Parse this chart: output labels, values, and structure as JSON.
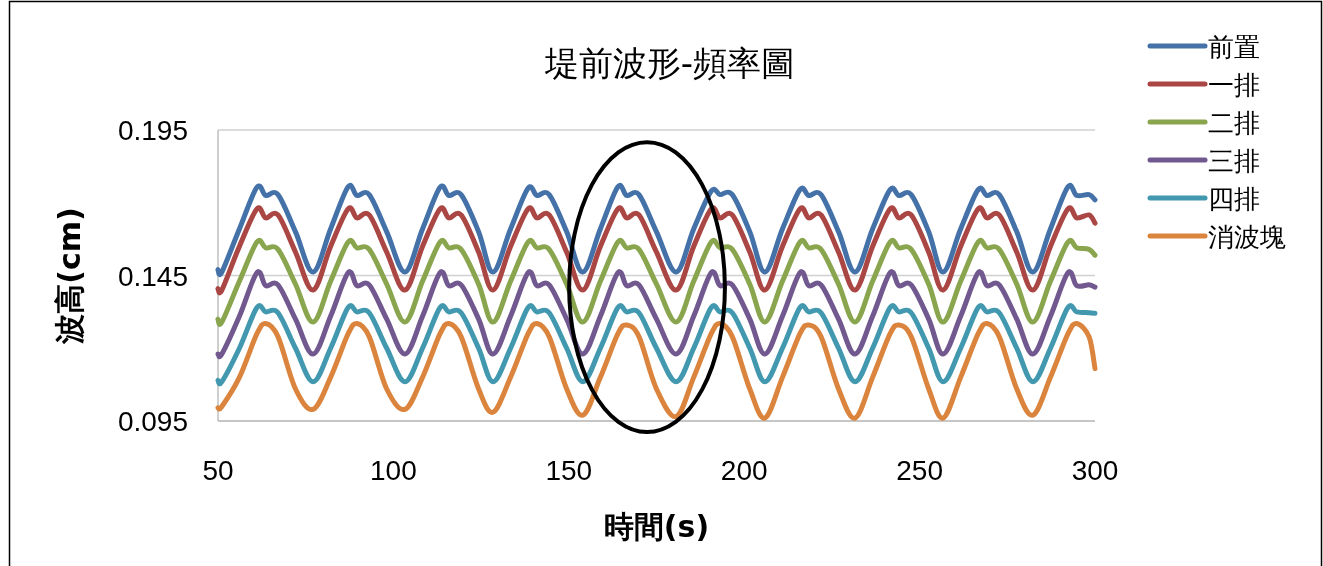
{
  "chart_data": {
    "type": "line",
    "title": "堤前波形-頻率圖",
    "xlabel": "時間(s)",
    "ylabel": "波高(cm)",
    "xlim": [
      50,
      300
    ],
    "xticks": [
      50,
      100,
      150,
      200,
      250,
      300
    ],
    "ylim": [
      0.095,
      0.195
    ],
    "yticks": [
      0.095,
      0.145,
      0.195
    ],
    "grid": "y",
    "legend": "top right",
    "marker": "none",
    "line_style": "solid",
    "x": [
      50,
      51.1,
      56.1,
      61.1,
      63.6,
      67.1,
      72.1,
      77.1,
      82.1,
      87.1,
      89.6,
      93.1,
      98.1,
      103.3,
      108.3,
      113.3,
      115.8,
      119.3,
      124.3,
      128.4,
      133.4,
      138.4,
      140.9,
      144.4,
      149.4,
      154,
      159,
      164,
      166.5,
      170,
      175,
      180.6,
      185.6,
      190.6,
      193.1,
      196.6,
      201.6,
      205.9,
      210.9,
      215.9,
      218.4,
      221.9,
      226.9,
      231.6,
      236.6,
      241.6,
      244.1,
      247.6,
      252.6,
      256.7,
      261.7,
      266.7,
      269.2,
      272.7,
      277.7,
      282.3,
      287.3,
      292.3,
      294.8,
      298.3,
      300
    ],
    "series": [
      {
        "name": "前置",
        "color": "#4472a8",
        "values": [
          0.147,
          0.1462,
          0.161,
          0.1753,
          0.1725,
          0.1728,
          0.16,
          0.1462,
          0.161,
          0.1755,
          0.1725,
          0.1728,
          0.16,
          0.1462,
          0.161,
          0.1753,
          0.1725,
          0.1728,
          0.16,
          0.1462,
          0.161,
          0.175,
          0.1725,
          0.1728,
          0.16,
          0.1462,
          0.161,
          0.1755,
          0.1725,
          0.1728,
          0.16,
          0.1462,
          0.161,
          0.174,
          0.1728,
          0.1728,
          0.16,
          0.1462,
          0.161,
          0.1745,
          0.1725,
          0.1728,
          0.16,
          0.1462,
          0.161,
          0.1745,
          0.1725,
          0.1728,
          0.16,
          0.1462,
          0.161,
          0.1745,
          0.1725,
          0.1728,
          0.16,
          0.1462,
          0.161,
          0.1755,
          0.1725,
          0.1728,
          0.171
        ]
      },
      {
        "name": "一排",
        "color": "#aa4643",
        "values": [
          0.1405,
          0.14,
          0.155,
          0.1679,
          0.1648,
          0.1658,
          0.153,
          0.14,
          0.155,
          0.1679,
          0.1648,
          0.1658,
          0.153,
          0.14,
          0.155,
          0.1679,
          0.1648,
          0.1658,
          0.153,
          0.14,
          0.155,
          0.1679,
          0.1648,
          0.1658,
          0.153,
          0.14,
          0.155,
          0.1679,
          0.1648,
          0.1658,
          0.153,
          0.14,
          0.155,
          0.1679,
          0.1648,
          0.1658,
          0.153,
          0.14,
          0.155,
          0.1679,
          0.1648,
          0.1658,
          0.153,
          0.14,
          0.155,
          0.1679,
          0.1648,
          0.1658,
          0.153,
          0.14,
          0.155,
          0.1679,
          0.1648,
          0.1658,
          0.153,
          0.14,
          0.155,
          0.1679,
          0.1648,
          0.1658,
          0.163
        ]
      },
      {
        "name": "二排",
        "color": "#89a54e",
        "values": [
          0.13,
          0.129,
          0.143,
          0.1565,
          0.1545,
          0.154,
          0.142,
          0.129,
          0.143,
          0.1565,
          0.1545,
          0.154,
          0.142,
          0.129,
          0.143,
          0.1565,
          0.1545,
          0.154,
          0.142,
          0.129,
          0.143,
          0.1565,
          0.1545,
          0.154,
          0.142,
          0.129,
          0.143,
          0.1565,
          0.1545,
          0.154,
          0.142,
          0.129,
          0.143,
          0.1565,
          0.1545,
          0.154,
          0.142,
          0.129,
          0.143,
          0.1565,
          0.1545,
          0.154,
          0.142,
          0.129,
          0.143,
          0.1565,
          0.1545,
          0.154,
          0.142,
          0.129,
          0.143,
          0.1565,
          0.1545,
          0.154,
          0.142,
          0.129,
          0.143,
          0.1565,
          0.1545,
          0.154,
          0.152
        ]
      },
      {
        "name": "三排",
        "color": "#71588f",
        "values": [
          0.118,
          0.118,
          0.131,
          0.146,
          0.1415,
          0.1418,
          0.13,
          0.118,
          0.131,
          0.146,
          0.1415,
          0.1418,
          0.13,
          0.118,
          0.131,
          0.146,
          0.1415,
          0.1418,
          0.13,
          0.118,
          0.131,
          0.146,
          0.1415,
          0.1418,
          0.13,
          0.118,
          0.131,
          0.146,
          0.1415,
          0.1418,
          0.13,
          0.118,
          0.131,
          0.146,
          0.1415,
          0.1418,
          0.13,
          0.118,
          0.131,
          0.146,
          0.1415,
          0.1418,
          0.13,
          0.118,
          0.131,
          0.146,
          0.1415,
          0.1418,
          0.13,
          0.118,
          0.131,
          0.146,
          0.1415,
          0.1418,
          0.13,
          0.118,
          0.131,
          0.146,
          0.1415,
          0.1418,
          0.141
        ]
      },
      {
        "name": "四排",
        "color": "#4198af",
        "values": [
          0.109,
          0.1085,
          0.12,
          0.134,
          0.1325,
          0.1322,
          0.12,
          0.1085,
          0.12,
          0.134,
          0.1325,
          0.1322,
          0.12,
          0.1085,
          0.12,
          0.134,
          0.1325,
          0.1322,
          0.12,
          0.1085,
          0.12,
          0.134,
          0.1325,
          0.1322,
          0.12,
          0.1085,
          0.12,
          0.134,
          0.1325,
          0.1322,
          0.12,
          0.1085,
          0.12,
          0.134,
          0.1325,
          0.1322,
          0.12,
          0.1085,
          0.12,
          0.134,
          0.1325,
          0.1322,
          0.12,
          0.1085,
          0.12,
          0.134,
          0.1325,
          0.1322,
          0.12,
          0.1085,
          0.12,
          0.134,
          0.1325,
          0.1322,
          0.12,
          0.1085,
          0.12,
          0.134,
          0.1325,
          0.1322,
          0.132
        ]
      },
      {
        "name": "消波塊",
        "color": "#db843d",
        "values": [
          0.0995,
          0.1,
          0.11,
          0.125,
          0.1285,
          0.124,
          0.106,
          0.099,
          0.11,
          0.125,
          0.1285,
          0.124,
          0.106,
          0.099,
          0.11,
          0.125,
          0.1285,
          0.124,
          0.106,
          0.098,
          0.11,
          0.125,
          0.1285,
          0.124,
          0.106,
          0.097,
          0.11,
          0.125,
          0.128,
          0.124,
          0.106,
          0.0965,
          0.11,
          0.125,
          0.1285,
          0.124,
          0.106,
          0.096,
          0.11,
          0.125,
          0.128,
          0.124,
          0.106,
          0.096,
          0.11,
          0.125,
          0.128,
          0.124,
          0.106,
          0.096,
          0.11,
          0.125,
          0.1285,
          0.124,
          0.106,
          0.097,
          0.11,
          0.125,
          0.1285,
          0.124,
          0.113
        ]
      }
    ]
  }
}
